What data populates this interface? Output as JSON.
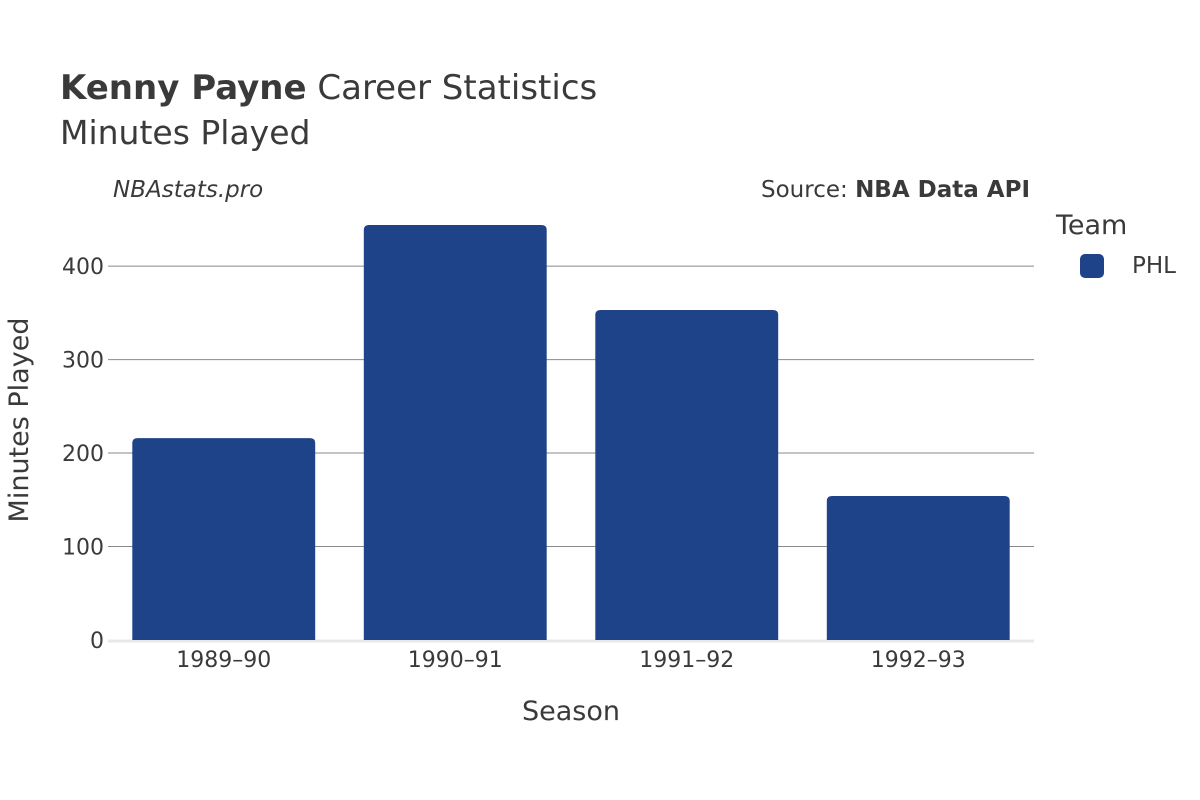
{
  "header": {
    "player_name": "Kenny Payne",
    "title_suffix": " Career Statistics",
    "subtitle": "Minutes Played",
    "watermark": "NBAstats.pro",
    "source_prefix": "Source: ",
    "source_name": "NBA Data API"
  },
  "legend": {
    "title": "Team",
    "items": [
      {
        "label": "PHL",
        "color": "#1f4388"
      }
    ]
  },
  "chart_data": {
    "type": "bar",
    "title": "Kenny Payne Career Statistics",
    "subtitle": "Minutes Played",
    "xlabel": "Season",
    "ylabel": "Minutes Played",
    "categories": [
      "1989–90",
      "1990–91",
      "1991–92",
      "1992–93"
    ],
    "series": [
      {
        "name": "PHL",
        "color": "#1f4388",
        "values": [
          216,
          444,
          353,
          154
        ]
      }
    ],
    "ylim": [
      0,
      450
    ],
    "yticks": [
      0,
      100,
      200,
      300,
      400
    ],
    "grid": true,
    "legend_position": "right"
  }
}
